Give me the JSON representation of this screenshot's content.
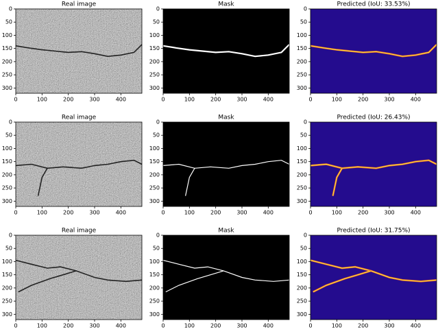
{
  "rows": [
    [
      "Real image",
      "Mask",
      "Predicted (IoU: 33.53%)"
    ],
    [
      "Real image",
      "Mask",
      "Predicted (IoU: 26.43%)"
    ],
    [
      "Real image",
      "Mask",
      "Predicted (IoU: 31.75%)"
    ]
  ],
  "axes": {
    "xlim": [
      0,
      480
    ],
    "ylim": [
      320,
      0
    ],
    "xticks": [
      0,
      100,
      200,
      300,
      400
    ],
    "yticks": [
      0,
      50,
      100,
      150,
      200,
      250,
      300
    ]
  }
}
